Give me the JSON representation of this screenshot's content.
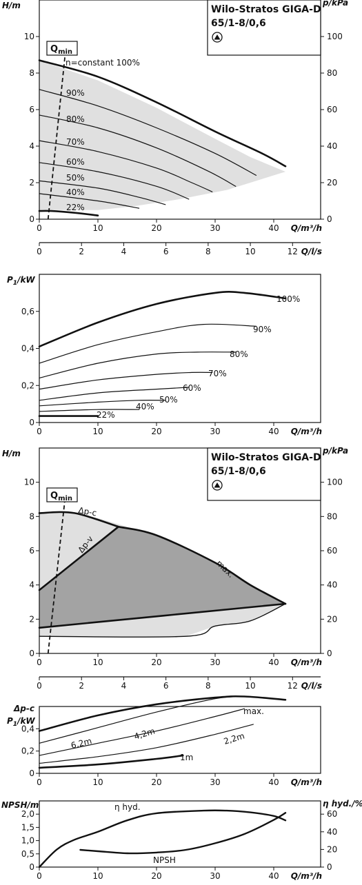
{
  "chart_data": [
    {
      "type": "line",
      "title": "Wilo-Stratos GIGA-D",
      "subtitle": "65/1-8/0,6",
      "xlabel": "Q/m³/h",
      "ylabel": "H/m",
      "y2label": "p/kPa",
      "xlim": [
        0,
        48
      ],
      "ylim": [
        0,
        12
      ],
      "y2lim": [
        0,
        120
      ],
      "xticks": [
        0,
        10,
        20,
        30,
        40
      ],
      "yticks": [
        0,
        2,
        4,
        6,
        8,
        10
      ],
      "y2ticks": [
        0,
        20,
        40,
        60,
        80,
        100
      ],
      "secondary_x": {
        "label": "Q/l/s",
        "xlim": [
          0,
          13.33
        ],
        "ticks": [
          0,
          2,
          4,
          6,
          8,
          10,
          12
        ]
      },
      "qmin_label": "Q",
      "qmin_sub": "min",
      "qmin_line": [
        [
          1.5,
          0
        ],
        [
          4.5,
          9.3
        ]
      ],
      "shaded_area": [
        [
          0,
          8.7
        ],
        [
          10,
          7.6
        ],
        [
          20,
          6.1
        ],
        [
          30,
          4.4
        ],
        [
          36,
          3.4
        ],
        [
          42,
          2.6
        ],
        [
          32,
          1.6
        ],
        [
          24,
          1.1
        ],
        [
          16,
          0.7
        ],
        [
          10,
          0.5
        ],
        [
          0,
          0.5
        ]
      ],
      "series": [
        {
          "name": "n=constant 100%",
          "label": "n=constant 100%",
          "bold": true,
          "x": [
            0,
            10,
            20,
            30,
            38,
            42
          ],
          "y": [
            8.7,
            7.8,
            6.4,
            4.8,
            3.6,
            2.9
          ]
        },
        {
          "name": "90%",
          "label": "90%",
          "x": [
            0,
            10,
            20,
            30,
            37
          ],
          "y": [
            7.1,
            6.2,
            5.0,
            3.6,
            2.4
          ]
        },
        {
          "name": "80%",
          "label": "80%",
          "x": [
            0,
            10,
            20,
            29,
            33.5
          ],
          "y": [
            5.7,
            5.0,
            3.9,
            2.6,
            1.8
          ]
        },
        {
          "name": "70%",
          "label": "70%",
          "x": [
            0,
            10,
            20,
            26,
            29.5
          ],
          "y": [
            4.3,
            3.7,
            2.8,
            2.0,
            1.5
          ]
        },
        {
          "name": "60%",
          "label": "60%",
          "x": [
            0,
            10,
            20,
            25.5
          ],
          "y": [
            3.1,
            2.6,
            1.8,
            1.1
          ]
        },
        {
          "name": "50%",
          "label": "50%",
          "x": [
            0,
            10,
            17,
            21.5
          ],
          "y": [
            2.1,
            1.7,
            1.2,
            0.8
          ]
        },
        {
          "name": "40%",
          "label": "40%",
          "x": [
            0,
            10,
            17
          ],
          "y": [
            1.4,
            1.0,
            0.6
          ]
        },
        {
          "name": "22%",
          "label": "22%",
          "bold": true,
          "x": [
            0,
            2,
            6,
            10
          ],
          "y": [
            0.45,
            0.45,
            0.35,
            0.2
          ]
        }
      ]
    },
    {
      "type": "line",
      "xlabel": "Q/m³/h",
      "ylabel": "P1/kW",
      "ylabel_main": "P",
      "ylabel_sub": "1",
      "ylabel_unit": "/kW",
      "xlim": [
        0,
        48
      ],
      "ylim": [
        0,
        0.8
      ],
      "xticks": [
        0,
        10,
        20,
        30,
        40
      ],
      "yticks": [
        0,
        0.2,
        0.4,
        0.6
      ],
      "ytick_labels": [
        "0",
        "0,2",
        "0,4",
        "0,6"
      ],
      "series": [
        {
          "name": "100%",
          "label": "100%",
          "bold": true,
          "x": [
            0,
            10,
            20,
            30,
            35,
            42
          ],
          "y": [
            0.41,
            0.54,
            0.64,
            0.7,
            0.7,
            0.67
          ]
        },
        {
          "name": "90%",
          "label": "90%",
          "x": [
            0,
            10,
            20,
            28,
            37
          ],
          "y": [
            0.32,
            0.42,
            0.49,
            0.53,
            0.52
          ]
        },
        {
          "name": "80%",
          "label": "80%",
          "x": [
            0,
            10,
            20,
            27,
            33.5
          ],
          "y": [
            0.24,
            0.32,
            0.37,
            0.38,
            0.38
          ]
        },
        {
          "name": "70%",
          "label": "70%",
          "x": [
            0,
            10,
            20,
            26,
            29.5
          ],
          "y": [
            0.18,
            0.23,
            0.26,
            0.27,
            0.27
          ]
        },
        {
          "name": "60%",
          "label": "60%",
          "x": [
            0,
            10,
            20,
            25.5
          ],
          "y": [
            0.12,
            0.16,
            0.18,
            0.19
          ]
        },
        {
          "name": "50%",
          "label": "50%",
          "x": [
            0,
            10,
            17,
            21.5
          ],
          "y": [
            0.09,
            0.11,
            0.12,
            0.12
          ]
        },
        {
          "name": "40%",
          "label": "40%",
          "x": [
            0,
            10,
            17
          ],
          "y": [
            0.06,
            0.07,
            0.07
          ]
        },
        {
          "name": "22%",
          "label": "22%",
          "bold": true,
          "x": [
            0,
            10
          ],
          "y": [
            0.035,
            0.035
          ]
        }
      ]
    },
    {
      "type": "area",
      "title": "Wilo-Stratos GIGA-D",
      "subtitle": "65/1-8/0,6",
      "xlabel": "Q/m³/h",
      "ylabel": "H/m",
      "y2label": "p/kPa",
      "xlim": [
        0,
        48
      ],
      "ylim": [
        0,
        12
      ],
      "y2lim": [
        0,
        120
      ],
      "xticks": [
        0,
        10,
        20,
        30,
        40
      ],
      "yticks": [
        0,
        2,
        4,
        6,
        8,
        10
      ],
      "y2ticks": [
        0,
        20,
        40,
        60,
        80,
        100
      ],
      "secondary_x": {
        "label": "Q/l/s",
        "xlim": [
          0,
          13.33
        ],
        "ticks": [
          0,
          2,
          4,
          6,
          8,
          10,
          12
        ]
      },
      "qmin_label": "Q",
      "qmin_sub": "min",
      "qmin_line": [
        [
          1.5,
          0
        ],
        [
          4.5,
          9.4
        ]
      ],
      "light_area": [
        [
          0,
          8.2
        ],
        [
          6,
          8.2
        ],
        [
          10,
          7.9
        ],
        [
          20,
          6.9
        ],
        [
          30,
          5.3
        ],
        [
          36,
          4.0
        ],
        [
          42,
          2.9
        ],
        [
          36,
          1.9
        ],
        [
          30,
          1.6
        ],
        [
          25,
          1.0
        ],
        [
          0,
          1.0
        ]
      ],
      "dark_area": [
        [
          0,
          3.7
        ],
        [
          13.5,
          7.4
        ],
        [
          20,
          6.9
        ],
        [
          30,
          5.3
        ],
        [
          36,
          4.0
        ],
        [
          42,
          2.9
        ],
        [
          0,
          1.5
        ]
      ],
      "series": [
        {
          "name": "Δp-c",
          "label": "Δp-c",
          "bold": true,
          "x": [
            0,
            6,
            13.5
          ],
          "y": [
            8.2,
            8.2,
            7.4
          ]
        },
        {
          "name": "Δp-v",
          "label": "Δp-v",
          "bold": true,
          "x": [
            0,
            13.5
          ],
          "y": [
            3.7,
            7.4
          ]
        },
        {
          "name": "max.",
          "label": "max.",
          "bold": true,
          "x": [
            13.5,
            20,
            30,
            36,
            42
          ],
          "y": [
            7.4,
            6.9,
            5.3,
            4.0,
            2.9
          ]
        },
        {
          "name": "min",
          "bold": true,
          "x": [
            0,
            42
          ],
          "y": [
            1.5,
            2.9
          ]
        },
        {
          "name": "outer",
          "x": [
            42,
            36,
            30,
            25,
            0
          ],
          "y": [
            2.9,
            1.9,
            1.6,
            1.0,
            1.0
          ]
        }
      ]
    },
    {
      "type": "line",
      "xlabel": "Q/m³/h",
      "ylabel": "P1/kW",
      "ylabel_top": "Δp-c",
      "ylabel_main": "P",
      "ylabel_sub": "1",
      "ylabel_unit": "/kW",
      "xlim": [
        0,
        48
      ],
      "ylim": [
        0,
        0.6
      ],
      "xticks": [
        0,
        10,
        20,
        30,
        40
      ],
      "yticks": [
        0,
        0.2,
        0.4
      ],
      "ytick_labels": [
        "0",
        "0,2",
        "0,4"
      ],
      "series": [
        {
          "name": "max.",
          "label": "max.",
          "bold": true,
          "x": [
            0,
            10,
            20,
            30,
            35,
            42
          ],
          "y": [
            0.38,
            0.52,
            0.62,
            0.68,
            0.69,
            0.66
          ]
        },
        {
          "name": "6,2m",
          "label": "6,2m",
          "x": [
            0,
            10,
            20,
            30,
            35
          ],
          "y": [
            0.27,
            0.41,
            0.55,
            0.67,
            0.69
          ]
        },
        {
          "name": "4,2m",
          "label": "4,2m",
          "x": [
            0,
            10,
            20,
            30,
            35
          ],
          "y": [
            0.16,
            0.27,
            0.38,
            0.51,
            0.58
          ]
        },
        {
          "name": "2,2m",
          "label": "2,2m",
          "x": [
            0,
            10,
            20,
            30,
            36.5
          ],
          "y": [
            0.09,
            0.15,
            0.23,
            0.35,
            0.44
          ]
        },
        {
          "name": "1m",
          "label": "1m",
          "bold": true,
          "x": [
            0,
            10,
            20,
            24.5
          ],
          "y": [
            0.05,
            0.08,
            0.13,
            0.16
          ]
        }
      ]
    },
    {
      "type": "line",
      "xlabel": "Q/m³/h",
      "ylabel": "NPSH/m",
      "y2label": "η hyd./%",
      "xlim": [
        0,
        48
      ],
      "ylim": [
        0,
        2.5
      ],
      "y2lim": [
        0,
        75
      ],
      "xticks": [
        0,
        10,
        20,
        30,
        40
      ],
      "yticks": [
        0,
        0.5,
        1.0,
        1.5,
        2.0
      ],
      "ytick_labels": [
        "0",
        "0,5",
        "1,0",
        "1,5",
        "2,0"
      ],
      "y2ticks": [
        0,
        20,
        40,
        60
      ],
      "series": [
        {
          "name": "η hyd.",
          "label": "η hyd.",
          "bold": true,
          "axis": "right",
          "x": [
            0,
            3,
            6,
            10,
            15,
            20,
            28,
            32,
            36,
            40,
            42
          ],
          "y": [
            0,
            20,
            31,
            40,
            53,
            61,
            64,
            64,
            62,
            58,
            53
          ]
        },
        {
          "name": "NPSH",
          "label": "NPSH",
          "bold": true,
          "axis": "left",
          "x": [
            7,
            10,
            15,
            20,
            25,
            30,
            35,
            40,
            42
          ],
          "y": [
            0.65,
            0.6,
            0.52,
            0.55,
            0.65,
            0.9,
            1.25,
            1.78,
            2.05
          ]
        }
      ]
    }
  ]
}
